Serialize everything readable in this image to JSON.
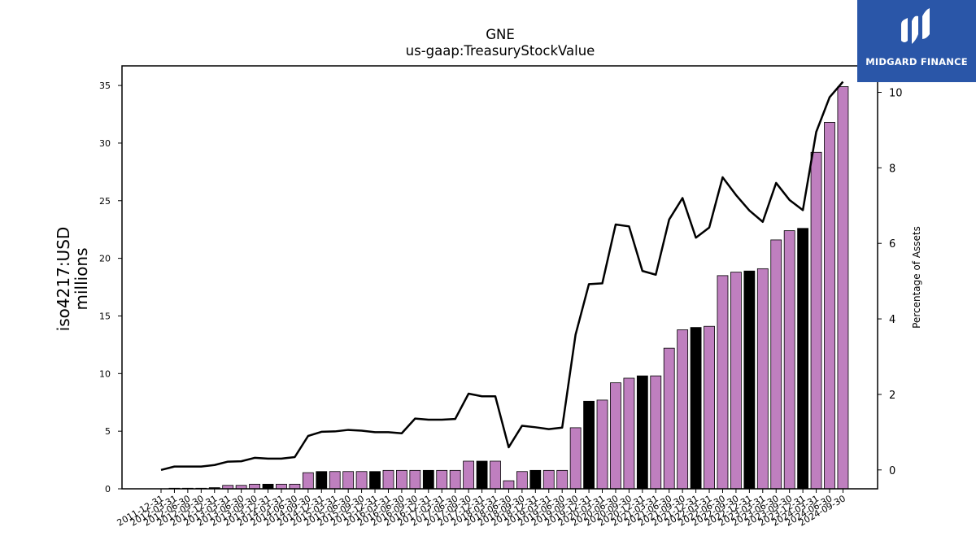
{
  "title": "GNE",
  "subtitle": "us-gaap:TreasuryStockValue",
  "logo": {
    "text": "MIDGARD FINANCE",
    "icon": "midgard-logo-icon",
    "background": "#2a56a8"
  },
  "chart_data": {
    "type": "bar",
    "ylabel": "iso4217:USD\nmillions",
    "y2label": "Percentage of Assets",
    "ylim": [
      0,
      36.7
    ],
    "y2lim": [
      -0.5,
      10.7
    ],
    "yticks": [
      0,
      5,
      10,
      15,
      20,
      25,
      30,
      35
    ],
    "y2ticks": [
      0,
      2,
      4,
      6,
      8,
      10
    ],
    "grid": false,
    "colors": {
      "bar_q": "#bf7fbf",
      "bar_fy": "#000000",
      "line": "#000000"
    },
    "categories": [
      "2011-12-31",
      "2012-03-31",
      "2012-06-30",
      "2012-09-30",
      "2012-12-31",
      "2013-03-31",
      "2013-06-30",
      "2013-09-30",
      "2013-12-31",
      "2014-03-31",
      "2014-06-30",
      "2014-09-30",
      "2014-12-31",
      "2015-03-31",
      "2015-06-30",
      "2015-09-30",
      "2015-12-31",
      "2016-03-31",
      "2016-06-30",
      "2016-09-30",
      "2016-12-31",
      "2017-03-31",
      "2017-06-30",
      "2017-09-30",
      "2017-12-31",
      "2018-03-31",
      "2018-06-30",
      "2018-09-30",
      "2018-12-31",
      "2019-03-31",
      "2019-06-30",
      "2019-09-30",
      "2019-12-31",
      "2020-03-31",
      "2020-06-30",
      "2020-09-30",
      "2020-12-31",
      "2021-03-31",
      "2021-06-30",
      "2021-09-30",
      "2021-12-31",
      "2022-03-31",
      "2022-06-30",
      "2022-09-30",
      "2022-12-31",
      "2023-03-31",
      "2023-06-30",
      "2023-09-30",
      "2023-12-31",
      "2024-03-31",
      "2024-06-30",
      "2024-09-30"
    ],
    "series": [
      {
        "values": [
          0,
          0.05,
          0.05,
          0.05,
          0.1,
          0.3,
          0.3,
          0.4,
          0.4,
          0.4,
          0.4,
          1.4,
          1.5,
          1.5,
          1.5,
          1.5,
          1.5,
          1.6,
          1.6,
          1.6,
          1.6,
          1.6,
          1.6,
          2.4,
          2.4,
          2.4,
          0.7,
          1.5,
          1.6,
          1.6,
          1.6,
          5.3,
          7.6,
          7.7,
          9.2,
          9.6,
          9.8,
          9.8,
          12.2,
          13.8,
          14.0,
          14.1,
          18.5,
          18.8,
          18.9,
          19.1,
          21.6,
          22.4,
          22.6,
          29.2,
          31.8,
          34.9
        ],
        "fy": [
          false,
          false,
          false,
          false,
          true,
          false,
          false,
          false,
          true,
          false,
          false,
          false,
          true,
          false,
          false,
          false,
          true,
          false,
          false,
          false,
          true,
          false,
          false,
          false,
          true,
          false,
          false,
          false,
          true,
          false,
          false,
          false,
          true,
          false,
          false,
          false,
          true,
          false,
          false,
          false,
          true,
          false,
          false,
          false,
          true,
          false,
          false,
          false,
          true,
          false,
          false,
          false
        ]
      },
      {
        "values": [
          0.0,
          0.09,
          0.09,
          0.09,
          0.13,
          0.22,
          0.23,
          0.32,
          0.3,
          0.3,
          0.34,
          0.9,
          1.01,
          1.02,
          1.06,
          1.04,
          1.0,
          1.0,
          0.97,
          1.36,
          1.33,
          1.33,
          1.35,
          2.02,
          1.95,
          1.95,
          0.6,
          1.17,
          1.13,
          1.08,
          1.12,
          3.58,
          4.92,
          4.94,
          6.5,
          6.45,
          5.27,
          5.17,
          6.63,
          7.2,
          6.15,
          6.42,
          7.75,
          7.28,
          6.87,
          6.57,
          7.6,
          7.15,
          6.88,
          8.95,
          9.87,
          10.28
        ]
      }
    ]
  }
}
